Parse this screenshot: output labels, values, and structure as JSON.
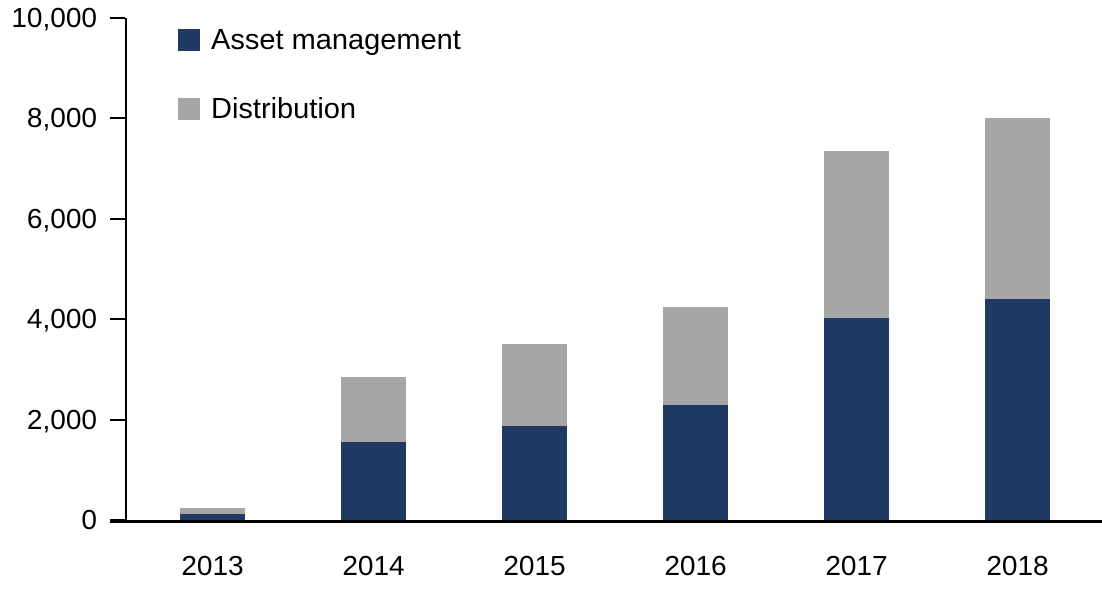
{
  "chart_data": {
    "type": "bar",
    "stacked": true,
    "title": "",
    "xlabel": "",
    "ylabel": "",
    "categories": [
      "2013",
      "2014",
      "2015",
      "2016",
      "2017",
      "2018"
    ],
    "series": [
      {
        "name": "Asset management",
        "color": "#203A63",
        "values": [
          110,
          1550,
          1870,
          2290,
          4020,
          4400
        ]
      },
      {
        "name": "Distribution",
        "color": "#A6A6A6",
        "values": [
          120,
          1300,
          1630,
          1960,
          3330,
          3600
        ]
      }
    ],
    "ylim": [
      0,
      10000
    ],
    "ytick_step": 2000,
    "ytick_values": [
      0,
      2000,
      4000,
      6000,
      8000,
      10000
    ],
    "ytick_labels": [
      "0",
      "2,000",
      "4,000",
      "6,000",
      "8,000",
      "10,000"
    ],
    "grid": false,
    "legend_position": "top-left",
    "axis_color": "#000000",
    "text_color": "#000000",
    "background_color": "#FFFFFF"
  }
}
